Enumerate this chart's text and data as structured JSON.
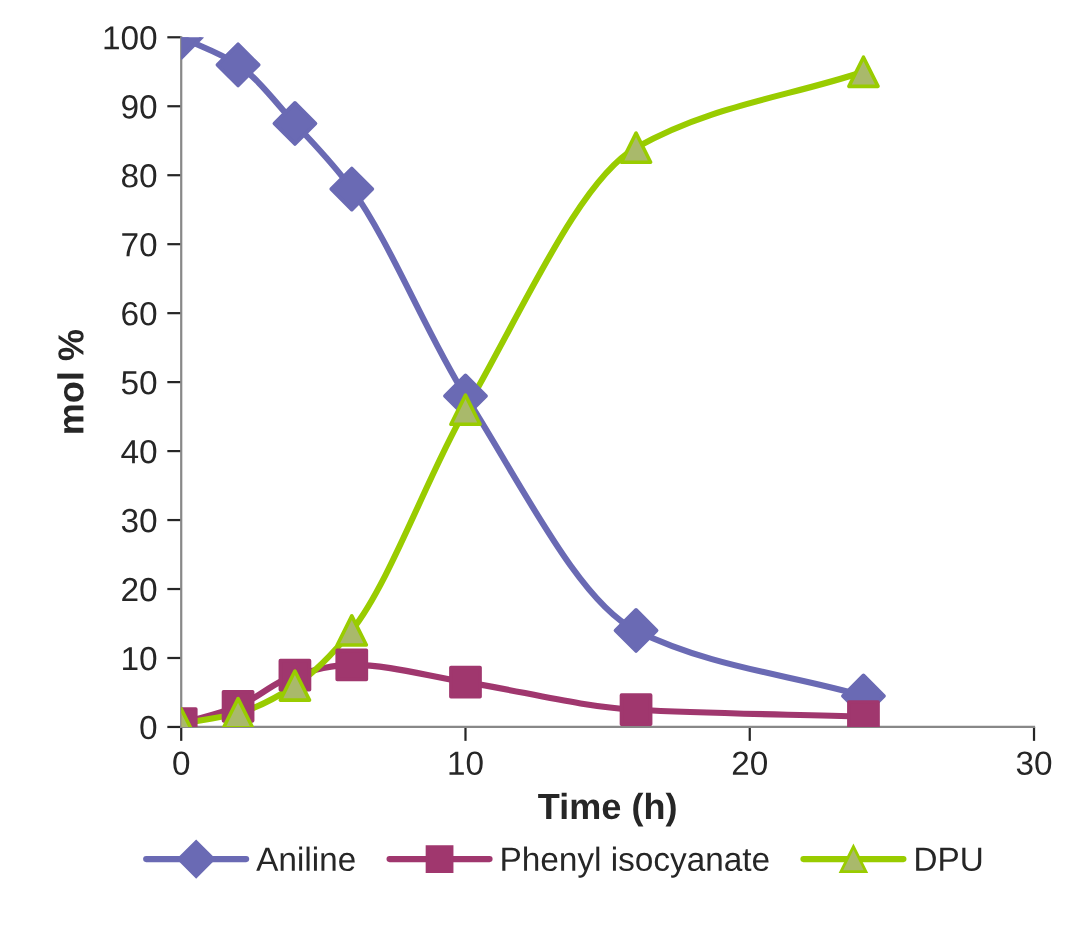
{
  "chart_data": {
    "type": "line",
    "xlabel": "Time (h)",
    "ylabel": "mol %",
    "x": [
      0,
      2,
      4,
      6,
      10,
      16,
      24
    ],
    "xlim": [
      0,
      30
    ],
    "xticks": [
      0,
      10,
      20,
      30
    ],
    "ylim": [
      0,
      100
    ],
    "yticks": [
      0,
      10,
      20,
      30,
      40,
      50,
      60,
      70,
      80,
      90,
      100
    ],
    "grid": false,
    "legend": "bottom",
    "series": [
      {
        "name": "Aniline",
        "color": "#6a6ab4",
        "marker": "diamond",
        "values": [
          100,
          96,
          87.5,
          78,
          48,
          14,
          4.5
        ]
      },
      {
        "name": "Phenyl isocyanate",
        "color": "#a0376e",
        "marker": "square",
        "values": [
          0.5,
          3,
          7.5,
          9,
          6.5,
          2.5,
          1.5
        ]
      },
      {
        "name": "DPU",
        "color": "#99cc00",
        "marker": "triangle",
        "values": [
          0.5,
          2,
          6,
          14,
          46,
          84,
          95
        ]
      }
    ]
  }
}
